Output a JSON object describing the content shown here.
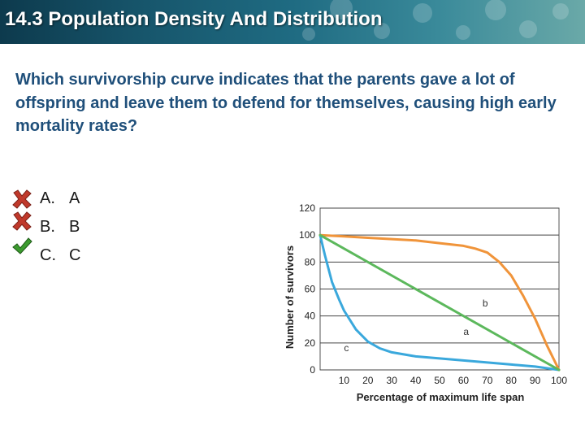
{
  "header": {
    "title": "14.3 Population Density And Distribution"
  },
  "question": {
    "text": "Which survivorship curve indicates that the parents gave a lot of offspring and leave them to defend for themselves, causing high early mortality rates?"
  },
  "answers": [
    {
      "letter": "A.",
      "text": "A",
      "status": "wrong",
      "icon": "red-x-icon"
    },
    {
      "letter": "B.",
      "text": "B",
      "status": "wrong",
      "icon": "red-x-icon"
    },
    {
      "letter": "C.",
      "text": "C",
      "status": "correct",
      "icon": "green-check-icon"
    }
  ],
  "colors": {
    "curve_a": "#5cb85c",
    "curve_b": "#f0943a",
    "curve_c": "#3aa8dc",
    "wrong": "#c0392b",
    "correct": "#3c9b2f"
  },
  "chart_data": {
    "type": "line",
    "title": "",
    "xlabel": "Percentage of maximum life span",
    "ylabel": "Number of survivors",
    "x_ticks": [
      "10",
      "20",
      "30",
      "40",
      "50",
      "60",
      "70",
      "80",
      "90",
      "100"
    ],
    "y_ticks": [
      "0",
      "20",
      "40",
      "60",
      "80",
      "100",
      "120"
    ],
    "xlim": [
      0,
      100
    ],
    "ylim": [
      0,
      120
    ],
    "grid": "horizontal",
    "series": [
      {
        "name": "a",
        "x": [
          0,
          100
        ],
        "y": [
          100,
          0
        ]
      },
      {
        "name": "b",
        "x": [
          0,
          10,
          20,
          30,
          40,
          50,
          60,
          65,
          70,
          75,
          80,
          85,
          90,
          95,
          100
        ],
        "y": [
          100,
          99,
          98,
          97,
          96,
          94,
          92,
          90,
          87,
          80,
          70,
          55,
          38,
          18,
          0
        ]
      },
      {
        "name": "c",
        "x": [
          0,
          2,
          5,
          8,
          10,
          15,
          20,
          25,
          30,
          40,
          50,
          60,
          70,
          80,
          90,
          100
        ],
        "y": [
          100,
          85,
          65,
          52,
          44,
          30,
          21,
          16,
          13,
          10,
          8.5,
          7,
          5.5,
          4,
          2.5,
          0
        ]
      }
    ]
  }
}
